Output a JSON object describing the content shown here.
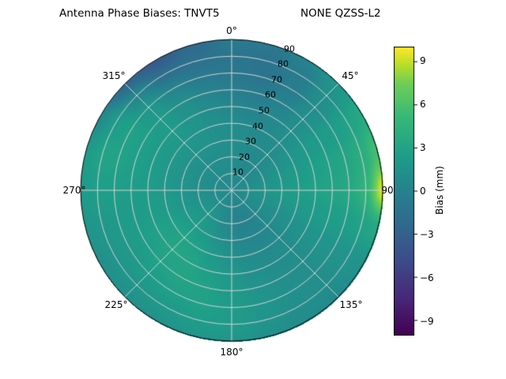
{
  "title": {
    "left": "Antenna Phase Biases: TNVT5",
    "right": "NONE QZSS-L2"
  },
  "chart_data": {
    "type": "heatmap",
    "projection": "polar",
    "title": "Antenna Phase Biases: TNVT5        NONE QZSS-L2",
    "station": "TNVT5",
    "system": "NONE QZSS-L2",
    "colorbar_label": "Bias (mm)",
    "colormap": "viridis",
    "vmin": -10,
    "vmax": 10,
    "colorbar_ticks": [
      9,
      6,
      3,
      0,
      -3,
      -6,
      -9
    ],
    "colorbar_tick_labels": [
      "9",
      "6",
      "3",
      "0",
      "−3",
      "−6",
      "−9"
    ],
    "azimuth_labels": [
      "0°",
      "45°",
      "90",
      "135°",
      "180°",
      "225°",
      "270°",
      "315°"
    ],
    "radial_ticks": [
      10,
      20,
      30,
      40,
      50,
      60,
      70,
      80,
      90
    ],
    "azimuth_step_deg": 15,
    "zenith_step_deg": 10,
    "values_mm": [
      [
        0.6,
        0.6,
        0.6,
        0.6,
        0.6,
        0.6,
        0.6,
        0.6,
        0.6,
        0.6,
        0.6,
        0.6,
        0.6,
        0.6,
        0.6,
        0.6,
        0.6,
        0.6,
        0.6,
        0.6,
        0.6,
        0.6,
        0.6,
        0.6
      ],
      [
        0.8,
        0.7,
        0.6,
        0.6,
        0.8,
        1.0,
        1.2,
        1.1,
        0.9,
        0.6,
        0.3,
        0.2,
        0.3,
        0.6,
        0.9,
        1.1,
        1.1,
        1.0,
        0.9,
        0.8,
        0.8,
        0.8,
        0.8,
        0.8
      ],
      [
        1.0,
        0.8,
        0.6,
        0.7,
        1.0,
        1.4,
        1.7,
        1.4,
        1.0,
        0.5,
        0.1,
        0.0,
        0.3,
        0.8,
        1.4,
        1.8,
        1.7,
        1.4,
        1.2,
        1.1,
        1.1,
        1.1,
        1.1,
        1.0
      ],
      [
        1.1,
        0.9,
        0.7,
        0.9,
        1.3,
        1.8,
        2.1,
        1.7,
        1.1,
        0.6,
        0.3,
        0.3,
        0.7,
        1.3,
        2.0,
        2.4,
        2.2,
        1.8,
        1.6,
        1.5,
        1.5,
        1.5,
        1.4,
        1.2
      ],
      [
        0.9,
        0.7,
        0.7,
        1.1,
        1.7,
        2.2,
        2.5,
        2.0,
        1.3,
        0.8,
        0.6,
        0.8,
        1.3,
        2.0,
        2.7,
        3.0,
        2.7,
        2.2,
        2.0,
        1.9,
        1.9,
        1.9,
        1.6,
        1.2
      ],
      [
        0.4,
        0.2,
        0.5,
        1.2,
        2.0,
        2.6,
        2.8,
        2.2,
        1.5,
        1.0,
        0.9,
        1.2,
        1.8,
        2.5,
        3.1,
        3.2,
        2.8,
        2.4,
        2.3,
        2.3,
        2.3,
        2.2,
        1.6,
        0.9
      ],
      [
        -0.3,
        -0.6,
        0.0,
        1.2,
        2.2,
        2.9,
        3.1,
        2.4,
        1.6,
        1.1,
        1.1,
        1.5,
        2.1,
        2.8,
        3.1,
        2.9,
        2.5,
        2.3,
        2.4,
        2.6,
        2.6,
        2.2,
        1.2,
        0.3
      ],
      [
        -1.0,
        -1.3,
        -0.6,
        1.0,
        2.4,
        3.2,
        3.4,
        2.5,
        1.6,
        1.1,
        1.2,
        1.7,
        2.3,
        2.8,
        2.7,
        2.4,
        2.1,
        2.1,
        2.5,
        2.9,
        2.8,
        1.8,
        0.2,
        -0.8
      ],
      [
        -1.2,
        -1.4,
        -0.6,
        1.3,
        2.9,
        3.9,
        4.6,
        2.9,
        1.6,
        1.0,
        1.1,
        1.6,
        2.2,
        2.4,
        2.1,
        1.8,
        1.7,
        1.9,
        2.5,
        3.0,
        2.4,
        0.4,
        -1.8,
        -1.6
      ],
      [
        -0.8,
        -1.0,
        0.0,
        1.8,
        3.6,
        5.8,
        9.4,
        3.4,
        1.4,
        0.6,
        0.8,
        1.2,
        1.7,
        1.8,
        1.4,
        1.2,
        1.2,
        1.6,
        2.2,
        2.2,
        0.6,
        -2.6,
        -3.6,
        -2.2
      ]
    ],
    "colormap_stops": [
      [
        0.0,
        "#440154"
      ],
      [
        0.125,
        "#482878"
      ],
      [
        0.25,
        "#3e4a89"
      ],
      [
        0.375,
        "#31688e"
      ],
      [
        0.5,
        "#26828e"
      ],
      [
        0.625,
        "#1f9e89"
      ],
      [
        0.75,
        "#35b779"
      ],
      [
        0.875,
        "#6ece58"
      ],
      [
        0.9375,
        "#b5de2b"
      ],
      [
        1.0,
        "#fde725"
      ]
    ],
    "grid": true,
    "grid_color": "#d4d4d4",
    "background_color": "#ffffff"
  }
}
